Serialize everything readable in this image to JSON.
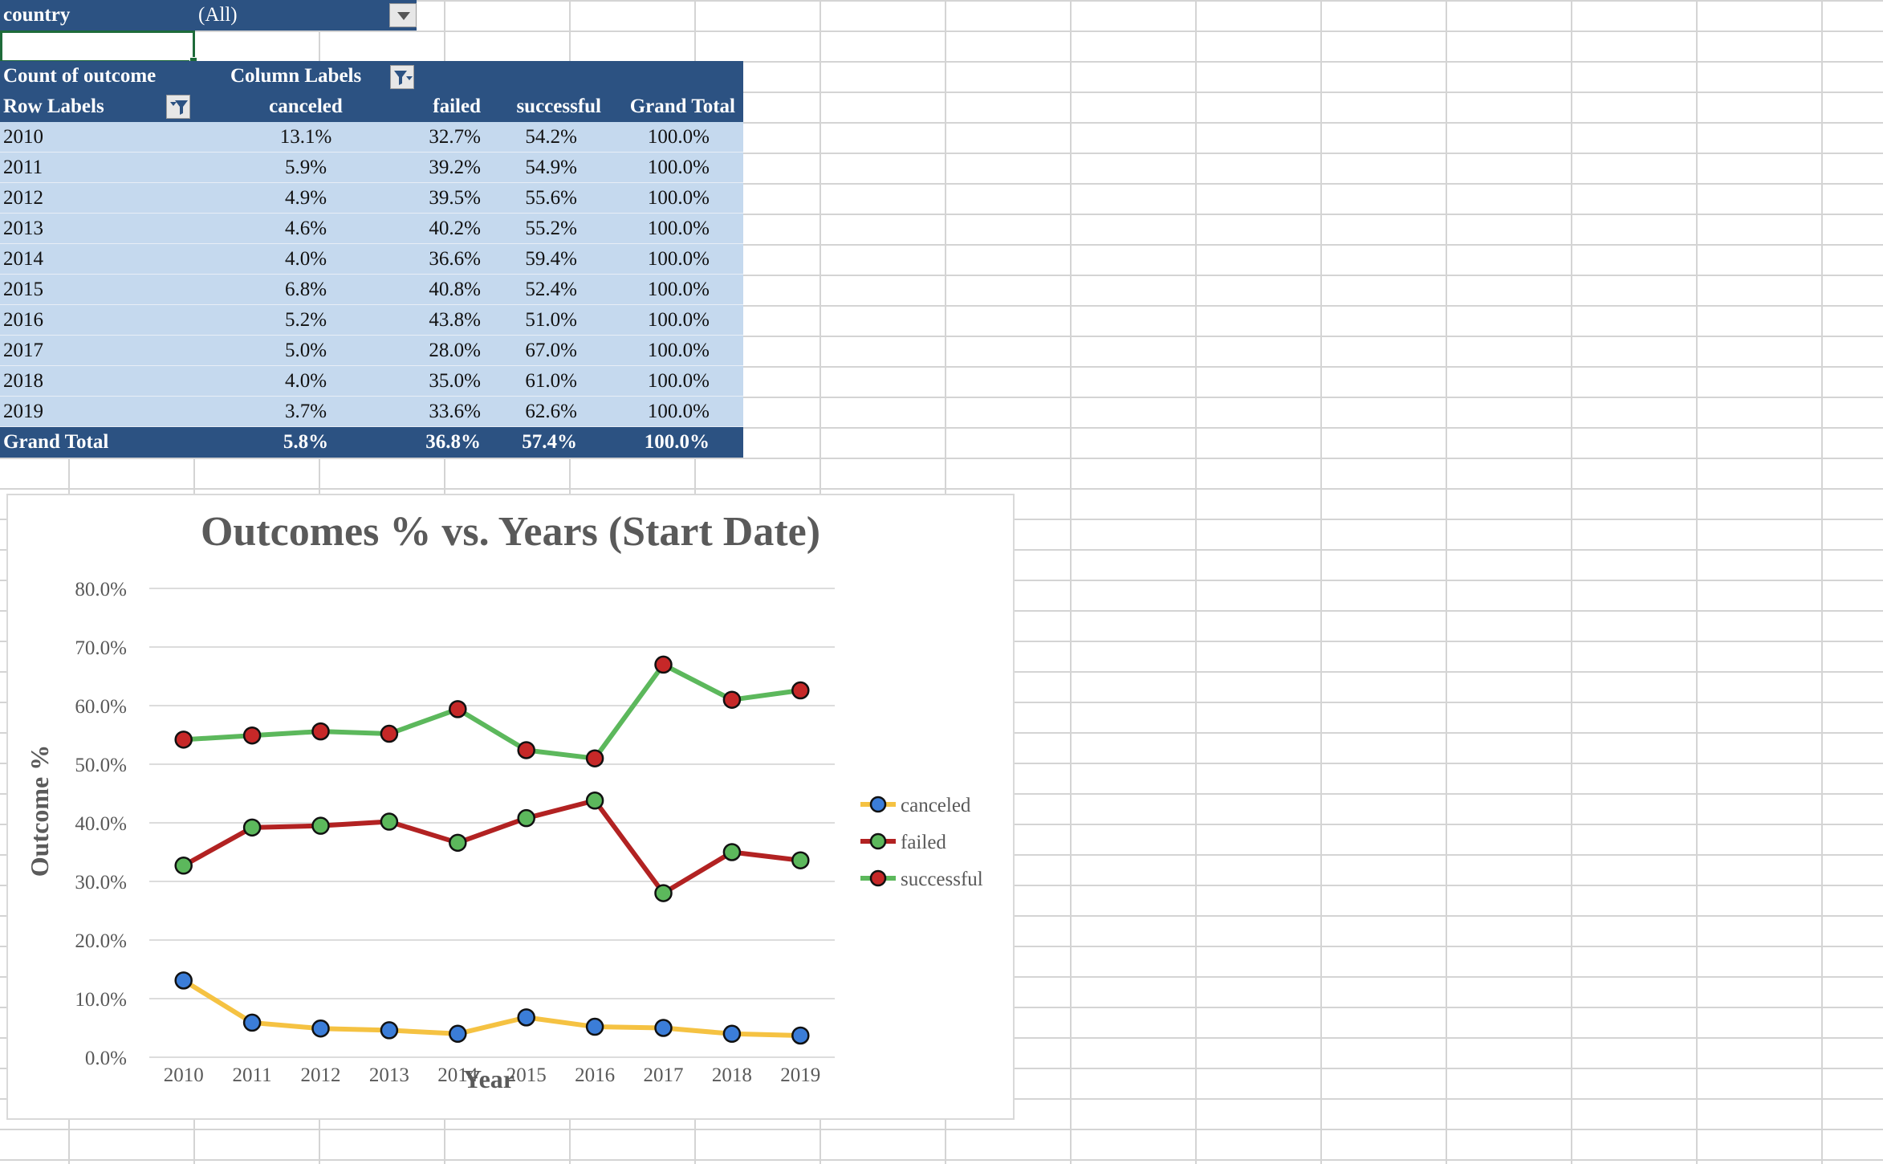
{
  "filter": {
    "field": "country",
    "value": "(All)"
  },
  "pivot": {
    "values_header": "Count of outcome",
    "columns_header": "Column Labels",
    "rows_header": "Row Labels",
    "columns": [
      "canceled",
      "failed",
      "successful",
      "Grand Total"
    ],
    "rows": [
      {
        "label": "2010",
        "values": [
          "13.1%",
          "32.7%",
          "54.2%",
          "100.0%"
        ]
      },
      {
        "label": "2011",
        "values": [
          "5.9%",
          "39.2%",
          "54.9%",
          "100.0%"
        ]
      },
      {
        "label": "2012",
        "values": [
          "4.9%",
          "39.5%",
          "55.6%",
          "100.0%"
        ]
      },
      {
        "label": "2013",
        "values": [
          "4.6%",
          "40.2%",
          "55.2%",
          "100.0%"
        ]
      },
      {
        "label": "2014",
        "values": [
          "4.0%",
          "36.6%",
          "59.4%",
          "100.0%"
        ]
      },
      {
        "label": "2015",
        "values": [
          "6.8%",
          "40.8%",
          "52.4%",
          "100.0%"
        ]
      },
      {
        "label": "2016",
        "values": [
          "5.2%",
          "43.8%",
          "51.0%",
          "100.0%"
        ]
      },
      {
        "label": "2017",
        "values": [
          "5.0%",
          "28.0%",
          "67.0%",
          "100.0%"
        ]
      },
      {
        "label": "2018",
        "values": [
          "4.0%",
          "35.0%",
          "61.0%",
          "100.0%"
        ]
      },
      {
        "label": "2019",
        "values": [
          "3.7%",
          "33.6%",
          "62.6%",
          "100.0%"
        ]
      }
    ],
    "grand_total": {
      "label": "Grand Total",
      "values": [
        "5.8%",
        "36.8%",
        "57.4%",
        "100.0%"
      ]
    }
  },
  "colors": {
    "header_bg": "#2c5282",
    "row_bg": "#c5d9ee",
    "canceled_line": "#f5c242",
    "canceled_marker": "#3b7dd8",
    "failed_line": "#b22222",
    "failed_marker": "#5cb85c",
    "successful_line": "#5cb85c",
    "successful_marker": "#c62828"
  },
  "chart_data": {
    "type": "line",
    "title": "Outcomes % vs. Years (Start Date)",
    "xlabel": "Year",
    "ylabel": "Outcome %",
    "categories": [
      "2010",
      "2011",
      "2012",
      "2013",
      "2014",
      "2015",
      "2016",
      "2017",
      "2018",
      "2019"
    ],
    "ylim": [
      0,
      80
    ],
    "yticks": [
      0,
      10,
      20,
      30,
      40,
      50,
      60,
      70,
      80
    ],
    "ytick_labels": [
      "0.0%",
      "10.0%",
      "20.0%",
      "30.0%",
      "40.0%",
      "50.0%",
      "60.0%",
      "70.0%",
      "80.0%"
    ],
    "grid": true,
    "legend": "right",
    "series": [
      {
        "name": "canceled",
        "values": [
          13.1,
          5.9,
          4.9,
          4.6,
          4.0,
          6.8,
          5.2,
          5.0,
          4.0,
          3.7
        ],
        "line_color": "#f5c242",
        "marker_color": "#3b7dd8"
      },
      {
        "name": "failed",
        "values": [
          32.7,
          39.2,
          39.5,
          40.2,
          36.6,
          40.8,
          43.8,
          28.0,
          35.0,
          33.6
        ],
        "line_color": "#b22222",
        "marker_color": "#5cb85c"
      },
      {
        "name": "successful",
        "values": [
          54.2,
          54.9,
          55.6,
          55.2,
          59.4,
          52.4,
          51.0,
          67.0,
          61.0,
          62.6
        ],
        "line_color": "#5cb85c",
        "marker_color": "#c62828"
      }
    ]
  }
}
